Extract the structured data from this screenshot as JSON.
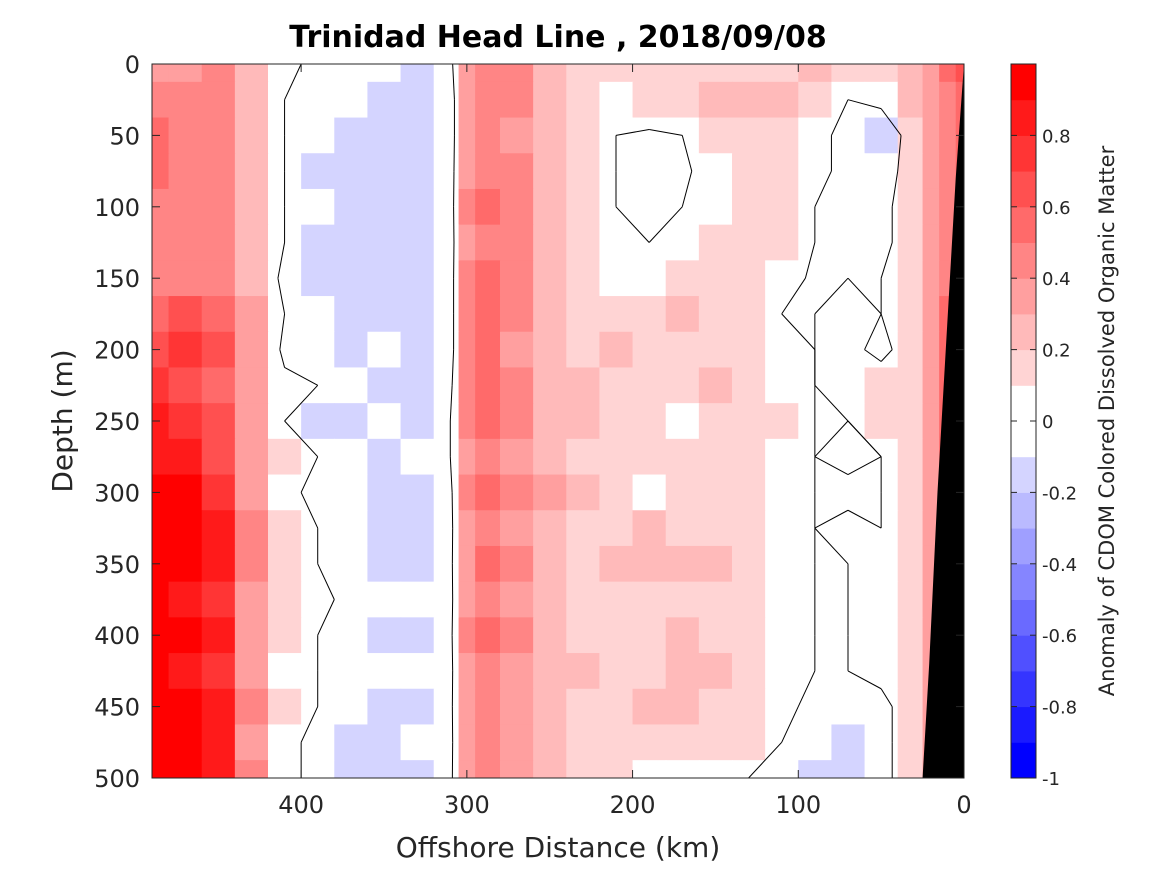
{
  "chart_data": {
    "type": "heatmap",
    "title": "Trinidad Head Line , 2018/09/08",
    "xlabel": "Offshore Distance (km)",
    "ylabel": "Depth (m)",
    "colorbar_label": "Anomaly of CDOM Colored Dissolved Organic Matter",
    "x_reversed": true,
    "y_reversed": true,
    "xlim": [
      490,
      0
    ],
    "ylim": [
      0,
      500
    ],
    "x_ticks": [
      400,
      300,
      200,
      100,
      0
    ],
    "y_ticks": [
      0,
      50,
      100,
      150,
      200,
      250,
      300,
      350,
      400,
      450,
      500
    ],
    "colorbar": {
      "range": [
        -1,
        1
      ],
      "ticks": [
        0.8,
        0.6,
        0.4,
        0.2,
        0,
        -0.2,
        -0.4,
        -0.6,
        -0.8,
        -1
      ],
      "tick_labels": [
        "0.8",
        "0.6",
        "0.4",
        "0.2",
        "0",
        "-0.2",
        "-0.4",
        "-0.6",
        "-0.8",
        "-1"
      ],
      "levels": [
        -1,
        -0.9,
        -0.8,
        -0.7,
        -0.6,
        -0.5,
        -0.4,
        -0.3,
        -0.2,
        -0.1,
        0.1,
        0.2,
        0.3,
        0.4,
        0.5,
        0.6,
        0.7,
        0.8,
        0.9,
        1.0
      ],
      "colors": [
        "#0000ff",
        "#1a1aff",
        "#3535ff",
        "#5050ff",
        "#6a6aff",
        "#8585ff",
        "#9f9fff",
        "#babaff",
        "#d4d4ff",
        "#ffffff",
        "#ffd4d4",
        "#ffbaba",
        "#ff9f9f",
        "#ff8585",
        "#ff6a6a",
        "#ff5050",
        "#ff3535",
        "#ff1a1a",
        "#ff0000"
      ]
    },
    "contour_level": 0,
    "bottom_mask_color": "#000000",
    "bottom_depth": [
      {
        "x": 0,
        "depth": 0
      },
      {
        "x": 5,
        "depth": 80
      },
      {
        "x": 10,
        "depth": 180
      },
      {
        "x": 16,
        "depth": 300
      },
      {
        "x": 21,
        "depth": 420
      },
      {
        "x": 25,
        "depth": 500
      }
    ],
    "x": [
      490,
      470,
      450,
      430,
      410,
      390,
      370,
      350,
      330,
      310,
      300,
      290,
      270,
      250,
      230,
      210,
      190,
      170,
      150,
      130,
      110,
      90,
      70,
      50,
      30,
      20,
      10,
      0
    ],
    "y": [
      0,
      25,
      50,
      75,
      100,
      125,
      150,
      175,
      200,
      225,
      250,
      275,
      300,
      325,
      350,
      375,
      400,
      425,
      450,
      475,
      500
    ],
    "z": [
      [
        0.3,
        0.3,
        0.4,
        0.2,
        0.05,
        -0.05,
        0.0,
        -0.1,
        -0.12,
        -0.05,
        0.3,
        0.4,
        0.4,
        0.2,
        0.1,
        0.1,
        0.1,
        0.1,
        0.1,
        0.1,
        0.1,
        0.2,
        0.15,
        0.1,
        0.2,
        0.3,
        0.5,
        0.6
      ],
      [
        0.4,
        0.4,
        0.45,
        0.25,
        0.0,
        -0.05,
        -0.1,
        -0.15,
        -0.15,
        -0.1,
        0.3,
        0.45,
        0.4,
        0.2,
        0.1,
        0.05,
        0.1,
        0.1,
        0.2,
        0.2,
        0.2,
        0.1,
        0.0,
        0.05,
        0.2,
        0.3,
        0.4,
        0.5
      ],
      [
        0.5,
        0.45,
        0.4,
        0.25,
        0.0,
        -0.1,
        -0.15,
        -0.2,
        -0.15,
        -0.1,
        0.3,
        0.4,
        0.35,
        0.2,
        0.1,
        0.0,
        -0.02,
        0.0,
        0.1,
        0.15,
        0.15,
        0.05,
        -0.05,
        -0.15,
        0.1,
        0.3,
        0.4,
        0.5
      ],
      [
        0.5,
        0.45,
        0.4,
        0.2,
        0.0,
        -0.15,
        -0.15,
        -0.15,
        -0.2,
        -0.1,
        0.35,
        0.45,
        0.4,
        0.2,
        0.1,
        0.0,
        -0.03,
        -0.02,
        0.05,
        0.1,
        0.15,
        0.05,
        -0.05,
        -0.1,
        0.1,
        0.3,
        0.4,
        0.5
      ],
      [
        0.45,
        0.45,
        0.4,
        0.25,
        0.0,
        -0.1,
        -0.15,
        -0.2,
        -0.15,
        -0.1,
        0.4,
        0.55,
        0.4,
        0.2,
        0.1,
        0.0,
        -0.02,
        0.0,
        0.05,
        0.1,
        0.15,
        0.0,
        -0.1,
        -0.05,
        0.1,
        0.3,
        0.4,
        0.5
      ],
      [
        0.4,
        0.45,
        0.4,
        0.2,
        0.0,
        -0.15,
        -0.2,
        -0.15,
        -0.15,
        -0.1,
        0.35,
        0.45,
        0.4,
        0.2,
        0.1,
        0.05,
        0.0,
        0.05,
        0.1,
        0.1,
        0.1,
        0.0,
        -0.05,
        -0.05,
        0.1,
        0.3,
        0.4,
        0.5
      ],
      [
        0.45,
        0.4,
        0.4,
        0.2,
        -0.05,
        -0.15,
        -0.2,
        -0.2,
        -0.15,
        -0.1,
        0.4,
        0.5,
        0.4,
        0.2,
        0.1,
        0.05,
        0.05,
        0.1,
        0.15,
        0.1,
        0.05,
        -0.02,
        0.0,
        0.0,
        0.1,
        0.3,
        0.45,
        0.5
      ],
      [
        0.55,
        0.6,
        0.55,
        0.3,
        0.0,
        -0.1,
        -0.15,
        -0.2,
        -0.15,
        -0.1,
        0.4,
        0.55,
        0.4,
        0.2,
        0.1,
        0.1,
        0.1,
        0.2,
        0.15,
        0.1,
        0.0,
        0.0,
        0.05,
        0.0,
        0.1,
        0.3,
        0.5,
        0.55
      ],
      [
        0.6,
        0.7,
        0.6,
        0.3,
        -0.05,
        -0.05,
        -0.15,
        -0.1,
        -0.2,
        -0.1,
        0.4,
        0.55,
        0.35,
        0.2,
        0.15,
        0.2,
        0.15,
        0.15,
        0.15,
        0.1,
        0.05,
        0.0,
        0.05,
        -0.05,
        0.1,
        0.3,
        0.5,
        0.55
      ],
      [
        0.7,
        0.65,
        0.55,
        0.3,
        0.05,
        0.0,
        -0.1,
        -0.15,
        -0.15,
        -0.05,
        0.4,
        0.5,
        0.4,
        0.2,
        0.2,
        0.15,
        0.1,
        0.15,
        0.2,
        0.15,
        0.05,
        0.0,
        0.05,
        0.1,
        0.15,
        0.3,
        0.5,
        0.55
      ],
      [
        0.8,
        0.75,
        0.6,
        0.3,
        0.0,
        -0.2,
        -0.2,
        -0.1,
        -0.15,
        0.0,
        0.4,
        0.55,
        0.4,
        0.25,
        0.2,
        0.15,
        0.1,
        0.05,
        0.1,
        0.1,
        0.1,
        0.0,
        0.0,
        0.1,
        0.15,
        0.3,
        0.5,
        0.55
      ],
      [
        0.85,
        0.8,
        0.65,
        0.35,
        0.1,
        0.0,
        -0.1,
        -0.15,
        -0.1,
        0.0,
        0.3,
        0.4,
        0.35,
        0.2,
        0.15,
        0.1,
        0.15,
        0.15,
        0.1,
        0.1,
        0.05,
        0.0,
        0.05,
        0.0,
        0.1,
        0.3,
        0.5,
        0.55
      ],
      [
        0.9,
        0.9,
        0.75,
        0.35,
        0.05,
        -0.05,
        -0.1,
        -0.15,
        -0.15,
        -0.05,
        0.4,
        0.5,
        0.45,
        0.3,
        0.2,
        0.15,
        0.05,
        0.15,
        0.1,
        0.1,
        0.05,
        0.0,
        -0.05,
        0.0,
        0.1,
        0.3,
        0.5,
        0.55
      ],
      [
        0.9,
        0.95,
        0.85,
        0.4,
        0.1,
        0.0,
        -0.05,
        -0.15,
        -0.2,
        -0.05,
        0.3,
        0.4,
        0.35,
        0.2,
        0.15,
        0.15,
        0.2,
        0.15,
        0.15,
        0.1,
        0.05,
        0.0,
        0.05,
        0.0,
        0.1,
        0.3,
        0.5,
        0.55
      ],
      [
        0.95,
        0.95,
        0.8,
        0.4,
        0.1,
        0.0,
        -0.1,
        -0.2,
        -0.15,
        -0.05,
        0.35,
        0.5,
        0.4,
        0.25,
        0.15,
        0.2,
        0.2,
        0.25,
        0.2,
        0.1,
        0.05,
        0.0,
        0.0,
        0.05,
        0.1,
        0.3,
        0.5,
        0.55
      ],
      [
        0.9,
        0.85,
        0.75,
        0.35,
        0.1,
        0.05,
        -0.05,
        -0.1,
        -0.1,
        -0.05,
        0.3,
        0.4,
        0.35,
        0.2,
        0.15,
        0.15,
        0.1,
        0.15,
        0.15,
        0.1,
        0.05,
        0.0,
        0.0,
        0.05,
        0.1,
        0.3,
        0.5,
        0.55
      ],
      [
        0.95,
        0.95,
        0.8,
        0.35,
        0.1,
        0.0,
        -0.1,
        -0.2,
        -0.15,
        -0.05,
        0.4,
        0.5,
        0.4,
        0.25,
        0.15,
        0.15,
        0.15,
        0.2,
        0.15,
        0.1,
        0.05,
        0.0,
        0.0,
        0.05,
        0.1,
        0.3,
        0.5,
        0.55
      ],
      [
        0.9,
        0.85,
        0.75,
        0.35,
        0.05,
        0.0,
        -0.05,
        -0.1,
        -0.1,
        -0.05,
        0.3,
        0.4,
        0.35,
        0.25,
        0.2,
        0.15,
        0.15,
        0.2,
        0.2,
        0.15,
        0.05,
        0.0,
        0.0,
        0.05,
        0.1,
        0.3,
        0.5,
        0.55
      ],
      [
        0.95,
        0.95,
        0.85,
        0.4,
        0.1,
        0.0,
        -0.1,
        -0.15,
        -0.15,
        -0.05,
        0.35,
        0.4,
        0.35,
        0.2,
        0.15,
        0.15,
        0.2,
        0.2,
        0.15,
        0.1,
        0.05,
        -0.05,
        -0.1,
        -0.05,
        0.1,
        0.3,
        0.5,
        0.55
      ],
      [
        0.9,
        0.9,
        0.8,
        0.35,
        0.05,
        -0.05,
        -0.15,
        -0.15,
        -0.1,
        -0.05,
        0.3,
        0.4,
        0.35,
        0.25,
        0.15,
        0.1,
        0.1,
        0.15,
        0.1,
        0.1,
        0.0,
        -0.1,
        -0.15,
        -0.05,
        0.1,
        0.3,
        0.5,
        0.55
      ],
      [
        0.95,
        0.9,
        0.85,
        0.4,
        0.05,
        -0.05,
        -0.15,
        -0.2,
        -0.15,
        -0.05,
        0.35,
        0.4,
        0.35,
        0.2,
        0.15,
        0.1,
        0.05,
        0.05,
        0.05,
        0.0,
        -0.05,
        -0.2,
        -0.15,
        -0.05,
        0.1,
        0.3,
        0.5,
        0.55
      ]
    ]
  }
}
